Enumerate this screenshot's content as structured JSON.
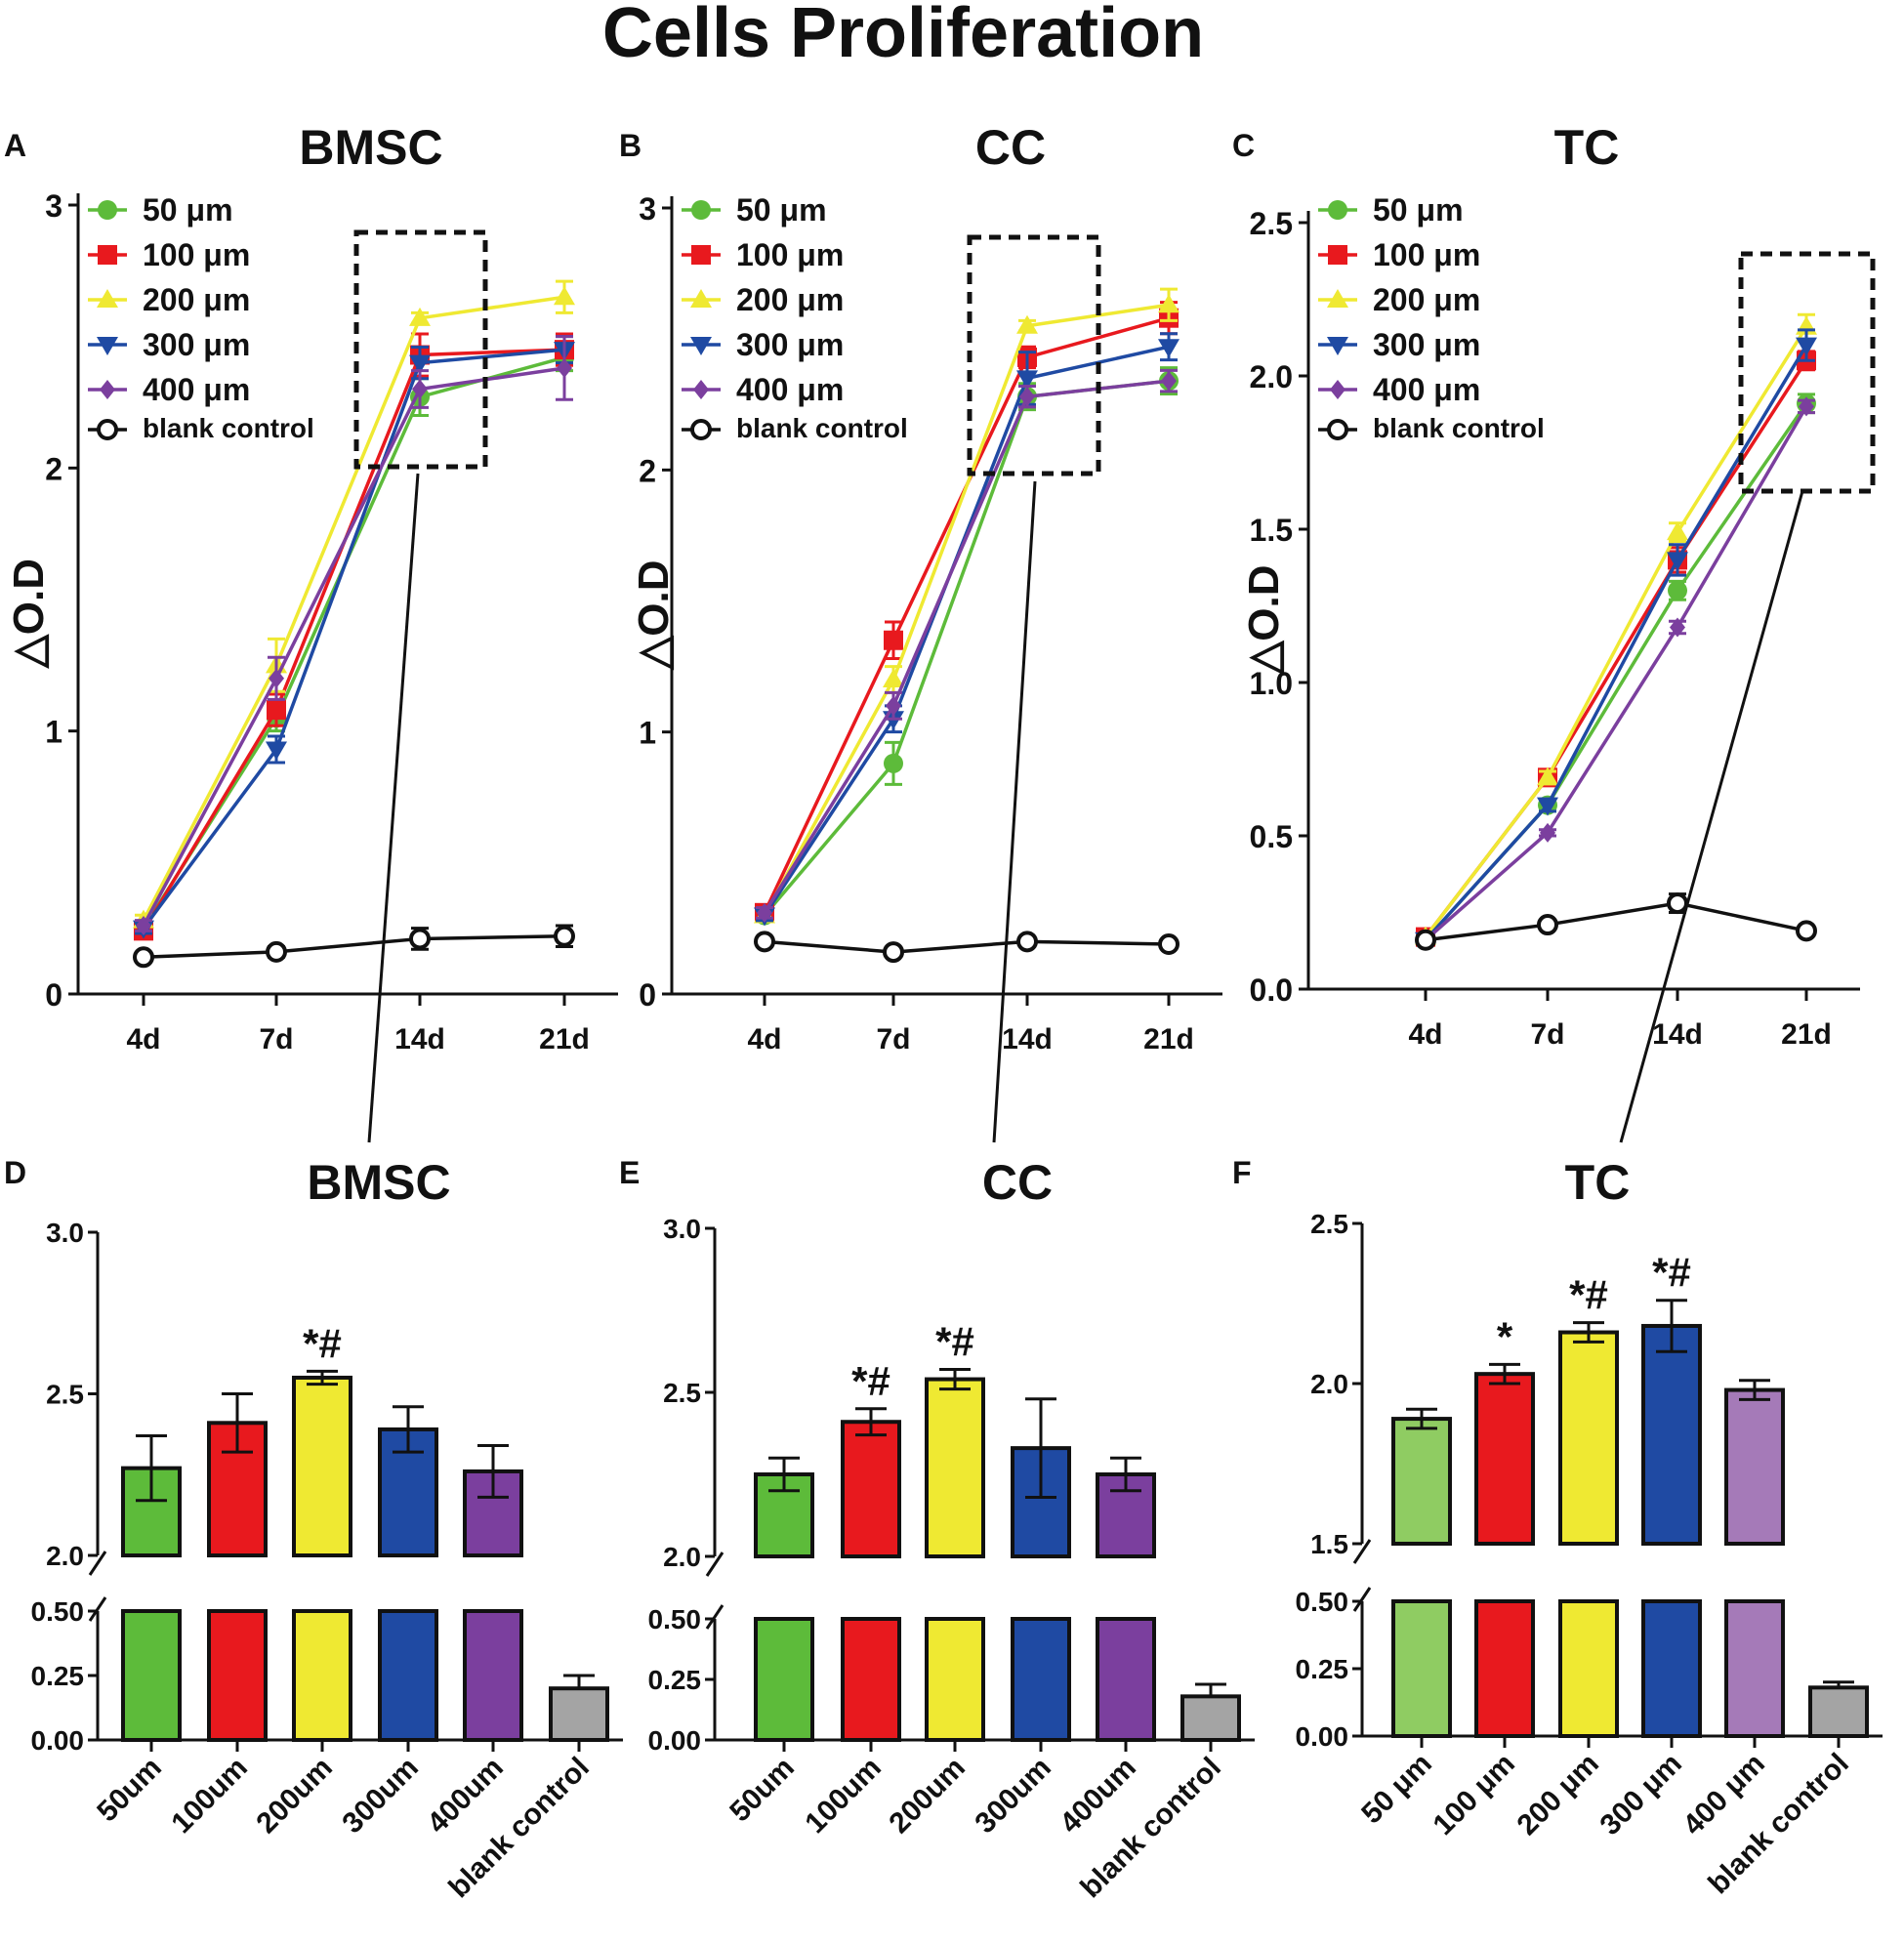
{
  "figure_title": "Cells Proliferation",
  "colors": {
    "green": "#5dbb3a",
    "red": "#e8191e",
    "yellow": "#efe932",
    "blue": "#1f4aa3",
    "purple": "#7b3f9e",
    "black": "#111111",
    "gray": "#a4a4a4",
    "light_green": "#8fcc62",
    "light_purple": "#a57ab8"
  },
  "chart_data": [
    {
      "panel": "A",
      "type": "line",
      "title": "BMSC",
      "ylabel": "△O.D",
      "ylim": [
        0,
        3
      ],
      "yticks": [
        "0",
        "1",
        "2",
        "3"
      ],
      "categories": [
        "4d",
        "7d",
        "14d",
        "21d"
      ],
      "legend": [
        "50 μm",
        "100 μm",
        "200 μm",
        "300 μm",
        "400 μm",
        "blank control"
      ],
      "highlight_category": "14d",
      "series": [
        {
          "name": "50 μm",
          "color": "green",
          "marker": "circle",
          "values": [
            0.25,
            1.05,
            2.27,
            2.42
          ],
          "errors": [
            0.02,
            0.05,
            0.07,
            0.05
          ]
        },
        {
          "name": "100 μm",
          "color": "red",
          "marker": "square",
          "values": [
            0.24,
            1.08,
            2.43,
            2.45
          ],
          "errors": [
            0.02,
            0.06,
            0.08,
            0.06
          ]
        },
        {
          "name": "200 μm",
          "color": "yellow",
          "marker": "triangle-up",
          "values": [
            0.28,
            1.25,
            2.57,
            2.65
          ],
          "errors": [
            0.02,
            0.1,
            0.02,
            0.06
          ]
        },
        {
          "name": "300 μm",
          "color": "blue",
          "marker": "triangle-down",
          "values": [
            0.25,
            0.93,
            2.4,
            2.45
          ],
          "errors": [
            0.02,
            0.05,
            0.06,
            0.05
          ]
        },
        {
          "name": "400 μm",
          "color": "purple",
          "marker": "diamond",
          "values": [
            0.26,
            1.2,
            2.3,
            2.38
          ],
          "errors": [
            0.02,
            0.08,
            0.07,
            0.12
          ]
        },
        {
          "name": "blank control",
          "color": "black",
          "marker": "open-circle",
          "values": [
            0.14,
            0.16,
            0.21,
            0.22
          ],
          "errors": [
            0.01,
            0.02,
            0.04,
            0.04
          ]
        }
      ]
    },
    {
      "panel": "B",
      "type": "line",
      "title": "CC",
      "ylabel": "△O.D",
      "ylim": [
        0,
        3
      ],
      "yticks": [
        "0",
        "1",
        "2",
        "3"
      ],
      "categories": [
        "4d",
        "7d",
        "14d",
        "21d"
      ],
      "legend": [
        "50 μm",
        "100 μm",
        "200 μm",
        "300 μm",
        "400 μm",
        "blank control"
      ],
      "highlight_category": "14d",
      "series": [
        {
          "name": "50 μm",
          "color": "green",
          "marker": "circle",
          "values": [
            0.3,
            0.88,
            2.28,
            2.34
          ],
          "errors": [
            0.02,
            0.08,
            0.05,
            0.05
          ]
        },
        {
          "name": "100 μm",
          "color": "red",
          "marker": "square",
          "values": [
            0.31,
            1.35,
            2.43,
            2.58
          ],
          "errors": [
            0.02,
            0.07,
            0.04,
            0.06
          ]
        },
        {
          "name": "200 μm",
          "color": "yellow",
          "marker": "triangle-up",
          "values": [
            0.3,
            1.2,
            2.55,
            2.63
          ],
          "errors": [
            0.02,
            0.05,
            0.02,
            0.06
          ]
        },
        {
          "name": "300 μm",
          "color": "blue",
          "marker": "triangle-down",
          "values": [
            0.3,
            1.05,
            2.35,
            2.47
          ],
          "errors": [
            0.02,
            0.05,
            0.1,
            0.05
          ]
        },
        {
          "name": "400 μm",
          "color": "purple",
          "marker": "diamond",
          "values": [
            0.31,
            1.1,
            2.28,
            2.34
          ],
          "errors": [
            0.02,
            0.05,
            0.04,
            0.04
          ]
        },
        {
          "name": "blank control",
          "color": "black",
          "marker": "open-circle",
          "values": [
            0.2,
            0.16,
            0.2,
            0.19
          ],
          "errors": [
            0.01,
            0.01,
            0.01,
            0.01
          ]
        }
      ]
    },
    {
      "panel": "C",
      "type": "line",
      "title": "TC",
      "ylabel": "△O.D",
      "ylim": [
        0,
        2.5
      ],
      "yticks": [
        "0.0",
        "0.5",
        "1.0",
        "1.5",
        "2.0",
        "2.5"
      ],
      "categories": [
        "4d",
        "7d",
        "14d",
        "21d"
      ],
      "legend": [
        "50 μm",
        "100 μm",
        "200 μm",
        "300 μm",
        "400 μm",
        "blank control"
      ],
      "highlight_category": "21d",
      "series": [
        {
          "name": "50 μm",
          "color": "green",
          "marker": "circle",
          "values": [
            0.16,
            0.6,
            1.3,
            1.91
          ],
          "errors": [
            0.01,
            0.02,
            0.03,
            0.03
          ]
        },
        {
          "name": "100 μm",
          "color": "red",
          "marker": "square",
          "values": [
            0.17,
            0.69,
            1.4,
            2.05
          ],
          "errors": [
            0.01,
            0.02,
            0.04,
            0.03
          ]
        },
        {
          "name": "200 μm",
          "color": "yellow",
          "marker": "triangle-up",
          "values": [
            0.17,
            0.69,
            1.49,
            2.16
          ],
          "errors": [
            0.01,
            0.02,
            0.03,
            0.04
          ]
        },
        {
          "name": "300 μm",
          "color": "blue",
          "marker": "triangle-down",
          "values": [
            0.16,
            0.6,
            1.4,
            2.1
          ],
          "errors": [
            0.01,
            0.02,
            0.05,
            0.05
          ]
        },
        {
          "name": "400 μm",
          "color": "purple",
          "marker": "diamond",
          "values": [
            0.16,
            0.51,
            1.18,
            1.9
          ],
          "errors": [
            0.01,
            0.01,
            0.02,
            0.02
          ]
        },
        {
          "name": "blank control",
          "color": "black",
          "marker": "open-circle",
          "values": [
            0.16,
            0.21,
            0.28,
            0.19
          ],
          "errors": [
            0.01,
            0.01,
            0.03,
            0.01
          ]
        }
      ]
    },
    {
      "panel": "D",
      "type": "bar",
      "title": "BMSC",
      "categories": [
        "50um",
        "100um",
        "200um",
        "300um",
        "400um",
        "blank control"
      ],
      "upper_ylim": [
        2.0,
        3.0
      ],
      "upper_yticks": [
        "2.0",
        "2.5",
        "3.0"
      ],
      "lower_ylim": [
        0,
        0.5
      ],
      "lower_yticks": [
        "0.00",
        "0.25",
        "0.50"
      ],
      "values": [
        2.27,
        2.41,
        2.55,
        2.39,
        2.26,
        0.2
      ],
      "errors": [
        0.1,
        0.09,
        0.02,
        0.07,
        0.08,
        0.05
      ],
      "bar_colors": [
        "green",
        "red",
        "yellow",
        "blue",
        "purple",
        "gray"
      ],
      "annotations": [
        "",
        "",
        "*#",
        "",
        "",
        ""
      ]
    },
    {
      "panel": "E",
      "type": "bar",
      "title": "CC",
      "categories": [
        "50um",
        "100um",
        "200um",
        "300um",
        "400um",
        "blank control"
      ],
      "upper_ylim": [
        2.0,
        3.0
      ],
      "upper_yticks": [
        "2.0",
        "2.5",
        "3.0"
      ],
      "lower_ylim": [
        0,
        0.5
      ],
      "lower_yticks": [
        "0.00",
        "0.25",
        "0.50"
      ],
      "values": [
        2.25,
        2.41,
        2.54,
        2.33,
        2.25,
        0.18
      ],
      "errors": [
        0.05,
        0.04,
        0.03,
        0.15,
        0.05,
        0.05
      ],
      "bar_colors": [
        "green",
        "red",
        "yellow",
        "blue",
        "purple",
        "gray"
      ],
      "annotations": [
        "",
        "*#",
        "*#",
        "",
        "",
        ""
      ]
    },
    {
      "panel": "F",
      "type": "bar",
      "title": "TC",
      "categories": [
        "50 μm",
        "100 μm",
        "200 μm",
        "300 μm",
        "400 μm",
        "blank control"
      ],
      "upper_ylim": [
        1.5,
        2.5
      ],
      "upper_yticks": [
        "1.5",
        "2.0",
        "2.5"
      ],
      "lower_ylim": [
        0,
        0.5
      ],
      "lower_yticks": [
        "0.00",
        "0.25",
        "0.50"
      ],
      "values": [
        1.89,
        2.03,
        2.16,
        2.18,
        1.98,
        0.18
      ],
      "errors": [
        0.03,
        0.03,
        0.03,
        0.08,
        0.03,
        0.02
      ],
      "bar_colors": [
        "light_green",
        "red",
        "yellow",
        "blue",
        "light_purple",
        "gray"
      ],
      "annotations": [
        "",
        "*",
        "*#",
        "*#",
        "",
        ""
      ]
    }
  ]
}
